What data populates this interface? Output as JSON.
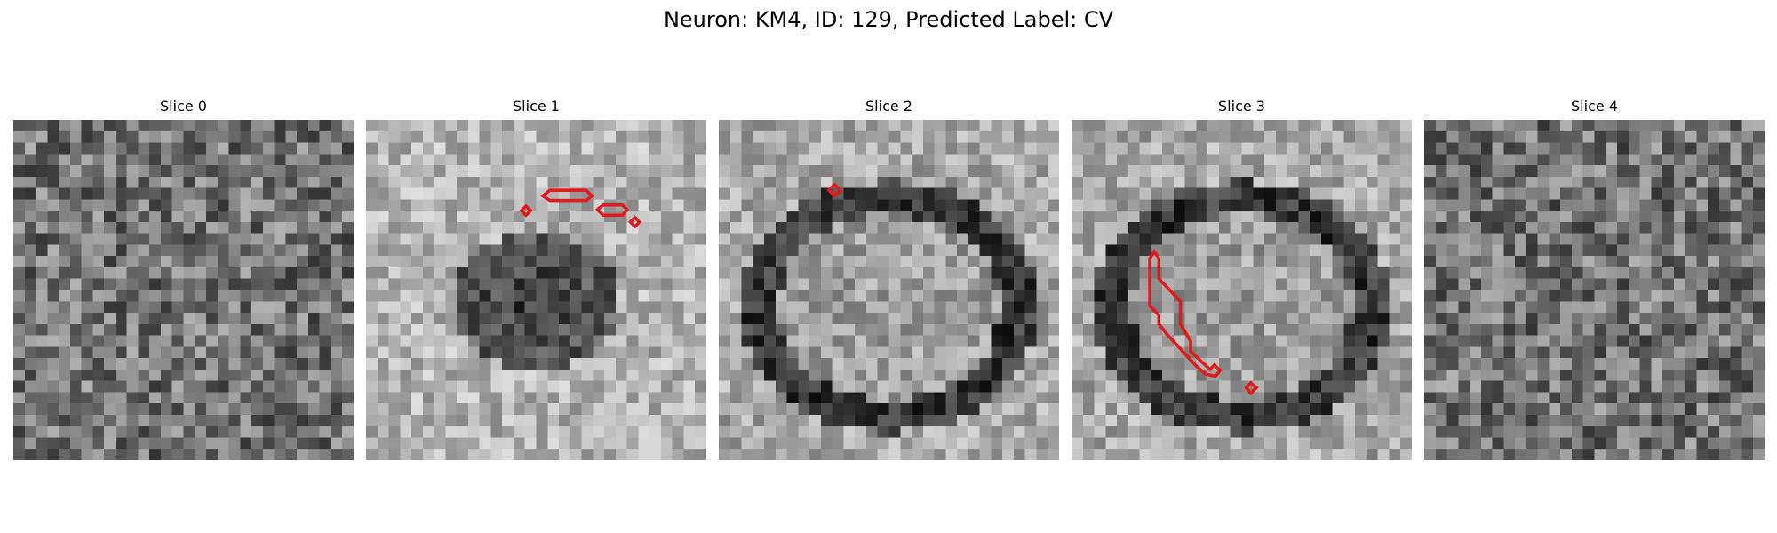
{
  "figure": {
    "title": "Neuron: KM4, ID: 129, Predicted Label: CV"
  },
  "panels": [
    {
      "title": "Slice 0",
      "texture": "noise",
      "seed": 11
    },
    {
      "title": "Slice 1",
      "texture": "dark-blob",
      "seed": 23
    },
    {
      "title": "Slice 2",
      "texture": "ring",
      "seed": 37
    },
    {
      "title": "Slice 3",
      "texture": "ring",
      "seed": 53
    },
    {
      "title": "Slice 4",
      "texture": "noise",
      "seed": 71
    }
  ],
  "colors": {
    "contour": "#e31a1c",
    "background": "#ffffff"
  }
}
